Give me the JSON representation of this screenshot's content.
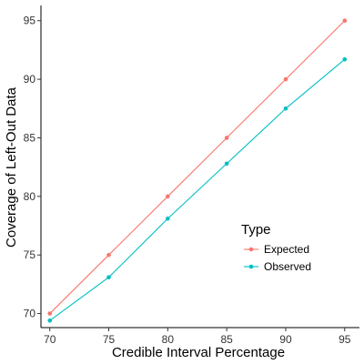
{
  "chart_data": {
    "type": "line",
    "title": "",
    "xlabel": "Credible Interval Percentage",
    "ylabel": "Coverage of Left-Out Data",
    "x": [
      70,
      75,
      80,
      85,
      90,
      95
    ],
    "xlim": [
      69.25,
      96.25
    ],
    "ylim": [
      68.8,
      96.3
    ],
    "xticks": [
      70,
      75,
      80,
      85,
      90,
      95
    ],
    "yticks": [
      70,
      75,
      80,
      85,
      90,
      95
    ],
    "grid": false,
    "legend": {
      "title": "Type",
      "placement": "bottom-right"
    },
    "series": [
      {
        "name": "Expected",
        "color": "#F8766D",
        "values": [
          70,
          75,
          80,
          85,
          90,
          95
        ]
      },
      {
        "name": "Observed",
        "color": "#00BFC4",
        "values": [
          69.4,
          73.1,
          78.1,
          82.8,
          87.5,
          91.7
        ]
      }
    ]
  }
}
